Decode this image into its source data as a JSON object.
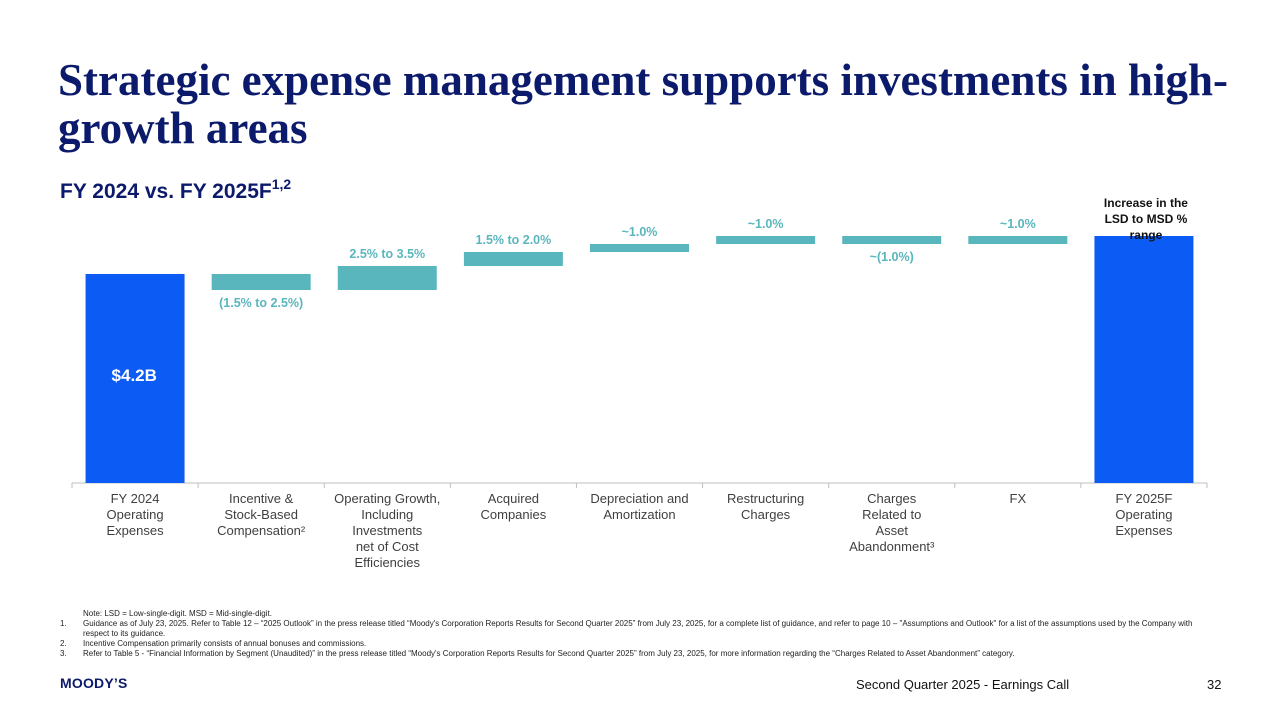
{
  "title": "Strategic expense management supports investments in high-growth areas",
  "subtitle": {
    "text": "FY 2024 vs. FY 2025F",
    "superscript": "1,2"
  },
  "colors": {
    "total_bar": "#0d5bf5",
    "step_bar": "#5ab6bd",
    "label": "#5ab6bd",
    "title": "#0c1a6b"
  },
  "chart_data": {
    "type": "bar",
    "subtype": "waterfall",
    "categories": [
      "FY 2024 Operating Expenses",
      "Incentive & Stock-Based Compensation²",
      "Operating Growth, Including Investments net of Cost Efficiencies",
      "Acquired Companies",
      "Depreciation and Amortization",
      "Restructuring Charges",
      "Charges Related to Asset Abandonment³",
      "FX",
      "FY 2025F Operating Expenses"
    ],
    "category_lines": [
      [
        "FY 2024",
        "Operating",
        "Expenses"
      ],
      [
        "Incentive &",
        "Stock-Based",
        "Compensation²"
      ],
      [
        "Operating Growth,",
        "Including",
        "Investments",
        "net of Cost",
        "Efficiencies"
      ],
      [
        "Acquired",
        "Companies"
      ],
      [
        "Depreciation and",
        "Amortization"
      ],
      [
        "Restructuring",
        "Charges"
      ],
      [
        "Charges",
        "Related to",
        "Asset",
        "Abandonment³"
      ],
      [
        "FX"
      ],
      [
        "FY 2025F",
        "Operating",
        "Expenses"
      ]
    ],
    "bar_kind": [
      "total",
      "step",
      "step",
      "step",
      "step",
      "step",
      "step",
      "step",
      "total"
    ],
    "values_pct": [
      null,
      -2.0,
      3.0,
      1.75,
      1.0,
      1.0,
      -1.0,
      1.0,
      null
    ],
    "data_labels": [
      "$4.2B",
      "(1.5% to 2.5%)",
      "2.5% to 3.5%",
      "1.5% to 2.0%",
      "~1.0%",
      "~1.0%",
      "~(1.0%)",
      "~1.0%",
      "Increase in the LSD to MSD % range"
    ],
    "total_values": {
      "FY 2024": 4.2,
      "FY 2025F": null
    },
    "unit": "$B / % change"
  },
  "notes": [
    {
      "num": "",
      "text": "Note: LSD = Low-single-digit. MSD = Mid-single-digit."
    },
    {
      "num": "1.",
      "text": "Guidance as of July 23, 2025. Refer to Table 12 – “2025 Outlook” in the press release titled “Moody's Corporation Reports Results for Second Quarter 2025” from July 23, 2025, for a complete list of guidance, and refer to page 10 – \"Assumptions and Outlook\" for a list of the assumptions used by the Company with respect to its guidance."
    },
    {
      "num": "2.",
      "text": "Incentive Compensation primarily consists of annual bonuses and commissions."
    },
    {
      "num": "3.",
      "text": "Refer to Table 5 - “Financial Information by Segment (Unaudited)” in the press release titled “Moody's Corporation Reports Results for Second Quarter 2025” from July 23, 2025, for more information regarding the “Charges Related to Asset Abandonment” category."
    }
  ],
  "footer": {
    "logo": "MOODY’S",
    "text": "Second Quarter 2025 - Earnings Call",
    "page": "32"
  }
}
